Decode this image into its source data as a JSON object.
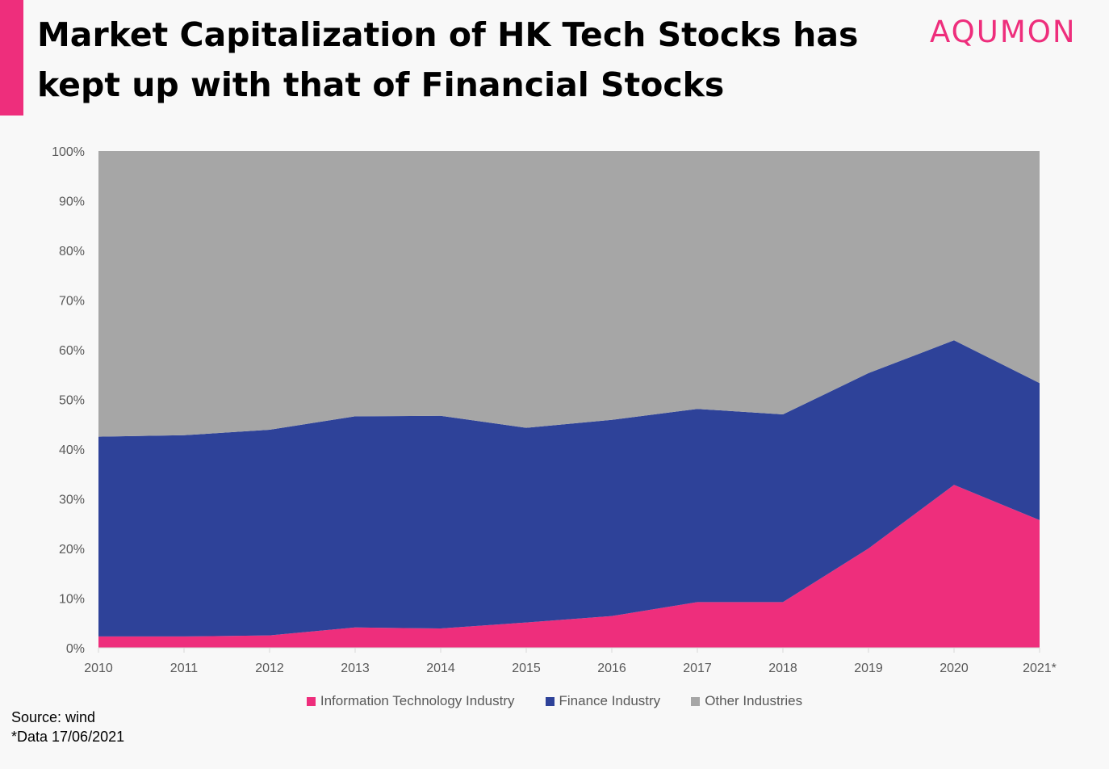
{
  "header": {
    "title": "Market Capitalization of HK Tech Stocks has kept up with that of Financial Stocks",
    "brand": "AQUMON"
  },
  "footer": {
    "source": "Source: wind",
    "note": "*Data 17/06/2021"
  },
  "colors": {
    "accent": "#ee2e7c",
    "it": "#ee2e7c",
    "finance": "#2e4299",
    "other": "#a6a6a6"
  },
  "chart_data": {
    "type": "area",
    "stacked": true,
    "categories": [
      "2010",
      "2011",
      "2012",
      "2013",
      "2014",
      "2015",
      "2016",
      "2017",
      "2018",
      "2019",
      "2020",
      "2021*"
    ],
    "yticks": [
      "0%",
      "10%",
      "20%",
      "30%",
      "40%",
      "50%",
      "60%",
      "70%",
      "80%",
      "90%",
      "100%"
    ],
    "ylim": [
      0,
      100
    ],
    "series": [
      {
        "name": "Information Technology Industry",
        "values": [
          2.3,
          2.3,
          2.5,
          4.1,
          3.9,
          5.1,
          6.4,
          9.2,
          9.2,
          20.0,
          32.8,
          25.7
        ]
      },
      {
        "name": "Finance Industry",
        "values": [
          40.2,
          40.5,
          41.4,
          42.5,
          42.8,
          39.2,
          39.5,
          38.9,
          37.8,
          35.3,
          29.1,
          27.6
        ]
      },
      {
        "name": "Other Industries",
        "values": [
          57.5,
          57.2,
          56.1,
          53.4,
          53.3,
          55.7,
          54.1,
          51.9,
          53.0,
          44.7,
          38.1,
          46.7
        ]
      }
    ],
    "legend_position": "bottom",
    "grid": false
  }
}
